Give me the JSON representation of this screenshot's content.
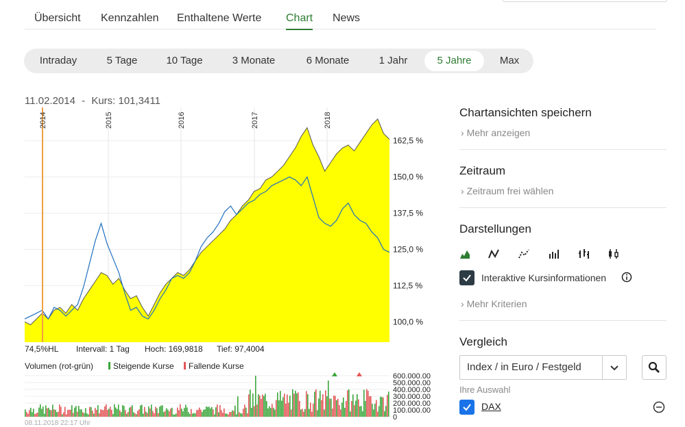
{
  "tabs": [
    "Übersicht",
    "Kennzahlen",
    "Enthaltene Werte",
    "Chart",
    "News"
  ],
  "active_tab": "Chart",
  "periods": [
    "Intraday",
    "5 Tage",
    "10 Tage",
    "3 Monate",
    "6 Monate",
    "1 Jahr",
    "5 Jahre",
    "Max"
  ],
  "active_period": "5 Jahre",
  "chart_info": {
    "date": "11.02.2014",
    "separator": "-",
    "price": "Kurs: 101,3411"
  },
  "stats": {
    "hl": "74,5%HL",
    "interval": "Intervall: 1 Tag",
    "high": "Hoch: 169,9818",
    "low": "Tief: 97,4004"
  },
  "volume_legend": {
    "title": "Volumen (rot-grün)",
    "rising": "Steigende Kurse",
    "falling": "Fallende Kurse"
  },
  "footer_timestamp": "08.11.2018 22:17 Uhr",
  "colors": {
    "accent": "#2e7d32",
    "area": "#ffff00",
    "compare_line": "#1e6fc0",
    "rising": "#3aa63a",
    "falling": "#e25555"
  },
  "chart_data": {
    "type": "area",
    "x_labels": [
      "2014",
      "2015",
      "2016",
      "2017",
      "2018"
    ],
    "y_ticks": [
      "162,5 %",
      "150,0 %",
      "137,5 %",
      "125,0 %",
      "112,5 %",
      "100,0 %"
    ],
    "ylim": [
      93,
      174
    ],
    "series": [
      {
        "values": [
          100,
          99,
          101,
          103,
          101,
          104,
          105,
          103,
          106,
          104,
          108,
          111,
          114,
          117,
          116,
          113,
          115,
          111,
          108,
          109,
          105,
          102,
          106,
          110,
          113,
          115,
          117,
          116,
          118,
          121,
          124,
          126,
          128,
          130,
          132,
          135,
          137,
          140,
          142,
          145,
          146,
          149,
          150,
          152,
          154,
          157,
          160,
          164,
          167,
          161,
          157,
          152,
          155,
          158,
          160,
          161,
          159,
          162,
          165,
          168,
          170,
          165,
          163
        ]
      },
      {
        "values": [
          101,
          102,
          103,
          104,
          101,
          105,
          104,
          102,
          104,
          106,
          112,
          120,
          128,
          134,
          127,
          122,
          117,
          110,
          104,
          105,
          102,
          101,
          104,
          108,
          111,
          115,
          116,
          115,
          117,
          121,
          126,
          129,
          131,
          134,
          138,
          140,
          137,
          139,
          141,
          142,
          144,
          145,
          147,
          148,
          149,
          150,
          149,
          147,
          150,
          143,
          136,
          134,
          133,
          135,
          139,
          141,
          137,
          135,
          134,
          131,
          129,
          125,
          124
        ]
      }
    ],
    "marker": {
      "x_label": "11.02.2014"
    }
  },
  "volume": {
    "y_ticks": [
      "600.000.00",
      "500.000.00",
      "400.000.00",
      "300.000.00",
      "200.000.00",
      "100.000.00",
      "0"
    ]
  },
  "sidebar": {
    "save_title": "Chartansichten speichern",
    "save_link": "Mehr anzeigen",
    "period_title": "Zeitraum",
    "period_link": "Zeitraum frei wählen",
    "display_title": "Darstellungen",
    "display_icons": [
      "area-chart-icon",
      "line-chart-icon",
      "dotted-line-icon",
      "ohlc-bars-icon",
      "hlc-bars-icon",
      "candlestick-icon"
    ],
    "interactive_label": "Interaktive Kursinformationen",
    "more_criteria": "Mehr Kriterien",
    "compare_title": "Vergleich",
    "compare_select": "Index / in Euro / Festgeld",
    "your_selection": "Ihre Auswahl",
    "dax_label": "DAX"
  }
}
